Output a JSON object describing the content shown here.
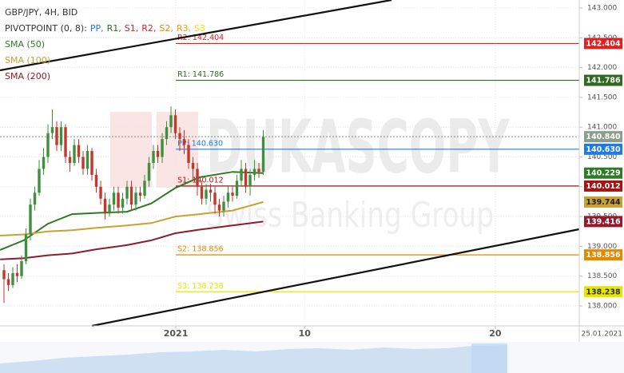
{
  "chart_data": {
    "type": "candlestick",
    "title": "GBP/JPY, 4H, BID",
    "pivot_legend": {
      "label": "PIVOTPOINT (0, 8):",
      "items": [
        {
          "text": "PP,",
          "color": "#1e7be0"
        },
        {
          "text": "R1,",
          "color": "#2e6b1e"
        },
        {
          "text": "S1,",
          "color": "#c62828"
        },
        {
          "text": "R2,",
          "color": "#e02020"
        },
        {
          "text": "S2,",
          "color": "#e08a00"
        },
        {
          "text": "R3,",
          "color": "#e0a800"
        },
        {
          "text": "S3",
          "color": "#e6e600"
        }
      ]
    },
    "watermark": {
      "brand": "DUKASCOPY",
      "tagline": "Swiss Banking Group"
    },
    "x": [
      0,
      1,
      2,
      3,
      4,
      5,
      6,
      7,
      8,
      9,
      10,
      11,
      12,
      13,
      14,
      15,
      16,
      17,
      18,
      19,
      20,
      21,
      22,
      23,
      24,
      25,
      26,
      27,
      28,
      29,
      30,
      31,
      32,
      33,
      34,
      35,
      36,
      37,
      38,
      39,
      40,
      41,
      42,
      43,
      44,
      45,
      46,
      47,
      48,
      49,
      50,
      51,
      52,
      53,
      54,
      55,
      56,
      57,
      58,
      59
    ],
    "open": [
      138.6,
      138.45,
      138.35,
      138.55,
      138.5,
      138.75,
      139.2,
      139.7,
      139.9,
      140.3,
      140.5,
      140.9,
      141.0,
      140.7,
      141.0,
      140.5,
      140.4,
      140.7,
      140.5,
      140.3,
      140.6,
      140.2,
      140.0,
      139.8,
      139.55,
      139.7,
      139.9,
      139.65,
      139.8,
      140.0,
      139.7,
      139.9,
      139.85,
      140.1,
      140.4,
      140.6,
      140.5,
      140.8,
      141.0,
      141.2,
      140.9,
      140.8,
      140.7,
      140.4,
      140.3,
      140.0,
      139.8,
      139.95,
      139.9,
      139.7,
      139.6,
      139.75,
      139.9,
      139.85,
      140.1,
      140.3,
      140.0,
      140.2,
      140.3,
      140.25
    ],
    "high": [
      138.7,
      138.55,
      138.65,
      138.7,
      138.85,
      139.3,
      139.8,
      140.0,
      140.45,
      140.65,
      141.05,
      141.3,
      141.1,
      141.1,
      141.05,
      140.6,
      140.8,
      140.8,
      140.6,
      140.7,
      140.65,
      140.3,
      140.1,
      139.9,
      139.8,
      140.0,
      140.0,
      139.9,
      140.1,
      140.1,
      140.0,
      140.0,
      140.2,
      140.5,
      140.7,
      140.7,
      140.9,
      141.1,
      141.35,
      141.3,
      141.0,
      140.95,
      140.8,
      140.5,
      140.4,
      140.1,
      140.05,
      140.05,
      140.0,
      139.8,
      139.85,
      140.0,
      140.0,
      140.2,
      140.45,
      140.4,
      140.3,
      140.45,
      140.4,
      140.95
    ],
    "low": [
      138.05,
      138.25,
      138.3,
      138.4,
      138.45,
      138.7,
      139.1,
      139.6,
      139.85,
      140.2,
      140.4,
      140.8,
      140.6,
      140.6,
      140.4,
      140.25,
      140.35,
      140.4,
      140.2,
      140.2,
      140.1,
      139.9,
      139.7,
      139.45,
      139.5,
      139.6,
      139.55,
      139.55,
      139.7,
      139.6,
      139.6,
      139.75,
      139.8,
      140.0,
      140.3,
      140.4,
      140.4,
      140.7,
      140.9,
      140.8,
      140.6,
      140.55,
      140.3,
      140.1,
      139.85,
      139.7,
      139.7,
      139.75,
      139.55,
      139.5,
      139.5,
      139.65,
      139.75,
      139.8,
      140.0,
      139.9,
      139.85,
      140.1,
      140.15,
      140.2
    ],
    "close": [
      138.45,
      138.35,
      138.55,
      138.5,
      138.75,
      139.2,
      139.7,
      139.9,
      140.3,
      140.5,
      140.9,
      141.0,
      140.7,
      141.0,
      140.5,
      140.4,
      140.7,
      140.5,
      140.3,
      140.6,
      140.2,
      140.0,
      139.8,
      139.55,
      139.7,
      139.9,
      139.65,
      139.8,
      140.0,
      139.7,
      139.9,
      139.85,
      140.1,
      140.4,
      140.6,
      140.5,
      140.8,
      141.0,
      141.2,
      140.9,
      140.8,
      140.7,
      140.4,
      140.3,
      140.0,
      139.8,
      139.95,
      139.9,
      139.7,
      139.6,
      139.75,
      139.9,
      139.85,
      140.1,
      140.3,
      140.0,
      140.2,
      140.3,
      140.25,
      140.84
    ],
    "up_color": "#3f8f3f",
    "down_color": "#c0392b",
    "series": [
      {
        "name": "SMA (50)",
        "color": "#2f7a24",
        "x": [
          -0.9,
          4.5,
          10,
          15.5,
          21,
          28,
          33.5,
          39,
          44.5,
          52,
          59
        ],
        "values": [
          138.94,
          139.1,
          139.38,
          139.54,
          139.56,
          139.58,
          139.72,
          139.98,
          140.16,
          140.25,
          140.229
        ]
      },
      {
        "name": "SMA (100)",
        "color": "#c9a033",
        "x": [
          -0.9,
          4.5,
          10,
          15.5,
          21,
          28,
          33.5,
          39,
          44.5,
          52,
          59
        ],
        "values": [
          139.18,
          139.2,
          139.25,
          139.27,
          139.31,
          139.35,
          139.39,
          139.5,
          139.54,
          139.6,
          139.744
        ]
      },
      {
        "name": "SMA (200)",
        "color": "#8e1b2e",
        "x": [
          -0.9,
          4.5,
          10,
          15.5,
          21,
          28,
          33.5,
          39,
          44.5,
          52,
          59
        ],
        "values": [
          138.78,
          138.8,
          138.85,
          138.88,
          138.95,
          139.02,
          139.1,
          139.22,
          139.28,
          139.35,
          139.416
        ]
      }
    ],
    "pivots": [
      {
        "name": "R2: 142.404",
        "value": 142.404,
        "badge": "142.404",
        "color": "#e02020",
        "text_color": "#ffffff"
      },
      {
        "name": "R1: 141.786",
        "value": 141.786,
        "badge": "141.786",
        "color": "#2e6b1e",
        "text_color": "#ffffff"
      },
      {
        "name": "PP: 140.630",
        "value": 140.63,
        "badge": "140.630",
        "color": "#1e7be0",
        "text_color": "#ffffff"
      },
      {
        "name": "S1: 140.012",
        "value": 140.012,
        "badge": "140.012",
        "color": "#a31515",
        "text_color": "#ffffff"
      },
      {
        "name": "S2: 138.856",
        "value": 138.856,
        "badge": "138.856",
        "color": "#e08a00",
        "text_color": "#ffffff"
      },
      {
        "name": "S3: 138.238",
        "value": 138.238,
        "badge": "138.238",
        "color": "#e6e600",
        "text_color": "#333333"
      }
    ],
    "last_price": {
      "value": 140.84,
      "label": "140.840",
      "color": "#8d9c8d"
    },
    "ylim": [
      137.665,
      143.134
    ],
    "yticks": [
      {
        "value": 138,
        "label": "138.000"
      },
      {
        "value": 138.5,
        "label": "138.500"
      },
      {
        "value": 139,
        "label": "139.000"
      },
      {
        "value": 139.5,
        "label": "139.500"
      },
      {
        "value": 140,
        "label": "140.000"
      },
      {
        "value": 140.5,
        "label": "140.500"
      },
      {
        "value": 141,
        "label": "141.000"
      },
      {
        "value": 141.5,
        "label": "141.500"
      },
      {
        "value": 142,
        "label": "142.000"
      },
      {
        "value": 142.5,
        "label": "142.500"
      },
      {
        "value": 143,
        "label": "143.000"
      }
    ],
    "xlim": [
      -0.91,
      130.9
    ],
    "xticks": [
      {
        "value": 39.1,
        "label": "2021"
      },
      {
        "value": 68.4,
        "label": "10"
      },
      {
        "value": 111.8,
        "label": "20"
      },
      {
        "value": 134.5,
        "label": "25.01.2021"
      }
    ],
    "grid": true
  }
}
